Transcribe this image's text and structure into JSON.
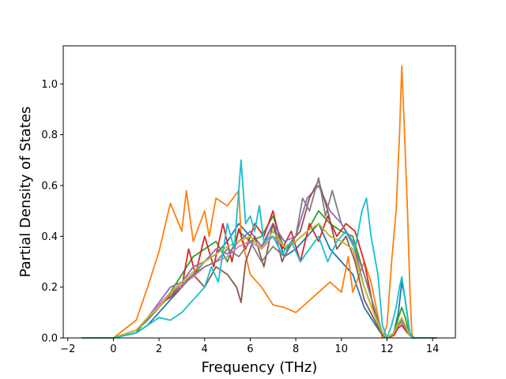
{
  "chart_data": {
    "type": "line",
    "title": "",
    "xlabel": "Frequency (THz)",
    "ylabel": "Partial Density of States",
    "xlim": [
      -2.2,
      15.0
    ],
    "ylim": [
      0.0,
      1.15
    ],
    "xticks": [
      -2,
      0,
      2,
      4,
      6,
      8,
      10,
      12,
      14
    ],
    "xtick_labels": [
      "−2",
      "0",
      "2",
      "4",
      "6",
      "8",
      "10",
      "12",
      "14"
    ],
    "yticks": [
      0.0,
      0.2,
      0.4,
      0.6,
      0.8,
      1.0
    ],
    "ytick_labels": [
      "0.0",
      "0.2",
      "0.4",
      "0.6",
      "0.8",
      "1.0"
    ],
    "grid": false,
    "legend": "none",
    "series": [
      {
        "color": "#1f77b4",
        "x": [
          -1.4,
          0,
          1,
          1.5,
          2,
          2.5,
          3,
          3.5,
          4,
          4.5,
          5,
          5.5,
          6,
          6.5,
          7,
          7.5,
          8,
          8.5,
          9,
          9.5,
          10,
          10.5,
          11,
          11.5,
          11.8,
          12.0,
          12.3,
          12.5,
          12.65,
          12.8,
          13.0,
          13.2,
          14.2
        ],
        "y": [
          0,
          0,
          0.02,
          0.05,
          0.1,
          0.15,
          0.2,
          0.25,
          0.3,
          0.33,
          0.38,
          0.45,
          0.4,
          0.35,
          0.45,
          0.32,
          0.35,
          0.4,
          0.45,
          0.35,
          0.3,
          0.25,
          0.12,
          0.05,
          0.01,
          0,
          0.02,
          0.1,
          0.22,
          0.15,
          0.02,
          0,
          0
        ]
      },
      {
        "color": "#ff7f0e",
        "x": [
          -1.4,
          0,
          1,
          1.5,
          2,
          2.5,
          3,
          3.2,
          3.5,
          4,
          4.2,
          4.5,
          5,
          5.5,
          5.6,
          6,
          6.5,
          7,
          7.5,
          8,
          8.5,
          9,
          9.5,
          10,
          10.3,
          10.5,
          11,
          11.3,
          11.8,
          12.0,
          12.2,
          12.4,
          12.55,
          12.65,
          12.75,
          12.9,
          13.0,
          13.1,
          14.2
        ],
        "y": [
          0,
          0,
          0.07,
          0.2,
          0.34,
          0.53,
          0.42,
          0.58,
          0.38,
          0.5,
          0.4,
          0.55,
          0.52,
          0.58,
          0.4,
          0.25,
          0.2,
          0.13,
          0.12,
          0.1,
          0.14,
          0.18,
          0.22,
          0.18,
          0.32,
          0.18,
          0.3,
          0.22,
          0,
          0.05,
          0.3,
          0.5,
          0.8,
          1.07,
          0.85,
          0.5,
          0.2,
          0,
          0
        ]
      },
      {
        "color": "#2ca02c",
        "x": [
          -1.4,
          0,
          1,
          1.5,
          2,
          2.5,
          3,
          3.5,
          4,
          4.5,
          5,
          5.5,
          6,
          6.5,
          7,
          7.5,
          8,
          8.5,
          9,
          9.5,
          10,
          10.5,
          11,
          11.5,
          11.8,
          12.0,
          12.3,
          12.5,
          12.65,
          12.8,
          13.0,
          13.2,
          14.2
        ],
        "y": [
          0,
          0,
          0.02,
          0.08,
          0.12,
          0.18,
          0.25,
          0.32,
          0.35,
          0.38,
          0.3,
          0.42,
          0.38,
          0.4,
          0.48,
          0.35,
          0.38,
          0.42,
          0.5,
          0.45,
          0.42,
          0.4,
          0.25,
          0.1,
          0.02,
          0,
          0.02,
          0.08,
          0.12,
          0.08,
          0.01,
          0,
          0
        ]
      },
      {
        "color": "#d62728",
        "x": [
          -1.4,
          0,
          1,
          1.5,
          2,
          2.5,
          3,
          3.3,
          3.6,
          4,
          4.4,
          4.8,
          5.2,
          5.5,
          5.8,
          6.2,
          6.6,
          7,
          7.4,
          7.8,
          8.2,
          8.6,
          9,
          9.4,
          9.8,
          10.2,
          10.6,
          11,
          11.4,
          11.8,
          12.0,
          12.3,
          12.5,
          12.65,
          12.8,
          13.0,
          13.2,
          14.2
        ],
        "y": [
          0,
          0,
          0.03,
          0.08,
          0.13,
          0.16,
          0.2,
          0.35,
          0.25,
          0.4,
          0.28,
          0.45,
          0.3,
          0.43,
          0.35,
          0.45,
          0.4,
          0.5,
          0.35,
          0.42,
          0.3,
          0.45,
          0.38,
          0.48,
          0.4,
          0.45,
          0.42,
          0.3,
          0.12,
          0.02,
          0,
          0.01,
          0.04,
          0.05,
          0.03,
          0.01,
          0,
          0
        ]
      },
      {
        "color": "#9467bd",
        "x": [
          -1.4,
          0,
          1,
          1.5,
          2,
          2.5,
          3,
          3.5,
          4,
          4.5,
          5,
          5.5,
          6,
          6.5,
          7,
          7.5,
          8,
          8.5,
          9,
          9.5,
          10,
          10.5,
          11,
          11.5,
          11.8,
          12.0,
          12.3,
          12.5,
          12.65,
          12.8,
          13.0,
          13.2,
          14.2
        ],
        "y": [
          0,
          0,
          0.03,
          0.08,
          0.14,
          0.2,
          0.22,
          0.28,
          0.3,
          0.35,
          0.33,
          0.38,
          0.42,
          0.36,
          0.45,
          0.38,
          0.4,
          0.55,
          0.6,
          0.5,
          0.45,
          0.38,
          0.2,
          0.08,
          0.02,
          0,
          0.02,
          0.05,
          0.06,
          0.04,
          0.01,
          0,
          0
        ]
      },
      {
        "color": "#8c564b",
        "x": [
          -1.4,
          0,
          1,
          1.5,
          2,
          2.5,
          3,
          3.5,
          4,
          4.5,
          5,
          5.4,
          5.6,
          5.8,
          6.2,
          6.6,
          7,
          7.4,
          7.8,
          8.2,
          8.6,
          9,
          9.4,
          9.8,
          10.2,
          10.6,
          11,
          11.4,
          11.8,
          12.0,
          12.3,
          12.5,
          12.65,
          12.8,
          13.0,
          13.2,
          14.2
        ],
        "y": [
          0,
          0,
          0.03,
          0.07,
          0.12,
          0.17,
          0.21,
          0.25,
          0.2,
          0.28,
          0.25,
          0.2,
          0.14,
          0.3,
          0.4,
          0.28,
          0.45,
          0.3,
          0.38,
          0.42,
          0.55,
          0.62,
          0.5,
          0.35,
          0.4,
          0.3,
          0.15,
          0.08,
          0.01,
          0,
          0.02,
          0.05,
          0.06,
          0.04,
          0.01,
          0,
          0
        ]
      },
      {
        "color": "#e377c2",
        "x": [
          -1.4,
          0,
          1,
          1.5,
          2,
          2.5,
          3,
          3.5,
          4,
          4.5,
          5,
          5.5,
          6,
          6.5,
          7,
          7.5,
          8,
          8.5,
          9,
          9.5,
          10,
          10.5,
          11,
          11.5,
          11.8,
          12.0,
          12.3,
          12.5,
          12.65,
          12.8,
          13.0,
          13.2,
          14.2
        ],
        "y": [
          0,
          0,
          0.03,
          0.08,
          0.13,
          0.18,
          0.21,
          0.24,
          0.28,
          0.3,
          0.32,
          0.36,
          0.38,
          0.35,
          0.4,
          0.36,
          0.38,
          0.42,
          0.45,
          0.4,
          0.38,
          0.35,
          0.2,
          0.08,
          0.02,
          0,
          0.02,
          0.05,
          0.06,
          0.04,
          0.01,
          0,
          0
        ]
      },
      {
        "color": "#7f7f7f",
        "x": [
          -1.4,
          0,
          1,
          1.5,
          2,
          2.5,
          3,
          3.5,
          4,
          4.5,
          5,
          5.5,
          6,
          6.5,
          7,
          7.5,
          8,
          8.3,
          8.6,
          9,
          9.3,
          9.6,
          10,
          10.3,
          10.6,
          11,
          11.5,
          11.8,
          12.0,
          12.3,
          12.5,
          12.65,
          12.8,
          13.0,
          13.2,
          14.2
        ],
        "y": [
          0,
          0,
          0.03,
          0.07,
          0.12,
          0.17,
          0.2,
          0.25,
          0.28,
          0.3,
          0.35,
          0.32,
          0.38,
          0.3,
          0.36,
          0.32,
          0.4,
          0.55,
          0.5,
          0.63,
          0.48,
          0.58,
          0.45,
          0.4,
          0.35,
          0.25,
          0.1,
          0.02,
          0,
          0.02,
          0.05,
          0.07,
          0.04,
          0.01,
          0,
          0
        ]
      },
      {
        "color": "#bcbd22",
        "x": [
          -1.4,
          0,
          1,
          1.5,
          2,
          2.5,
          3,
          3.5,
          4,
          4.5,
          5,
          5.5,
          6,
          6.5,
          7,
          7.5,
          8,
          8.5,
          9,
          9.5,
          10,
          10.5,
          11,
          11.5,
          11.8,
          12.0,
          12.3,
          12.5,
          12.65,
          12.8,
          13.0,
          13.2,
          14.2
        ],
        "y": [
          0,
          0,
          0.03,
          0.08,
          0.12,
          0.18,
          0.22,
          0.26,
          0.3,
          0.33,
          0.36,
          0.38,
          0.4,
          0.35,
          0.42,
          0.36,
          0.38,
          0.42,
          0.45,
          0.4,
          0.38,
          0.35,
          0.2,
          0.08,
          0.02,
          0,
          0.02,
          0.06,
          0.08,
          0.05,
          0.01,
          0,
          0
        ]
      },
      {
        "color": "#17becf",
        "x": [
          -1.4,
          0,
          1,
          1.5,
          2,
          2.5,
          3,
          3.5,
          4,
          4.3,
          4.6,
          5,
          5.3,
          5.5,
          5.6,
          5.8,
          6.0,
          6.2,
          6.4,
          6.6,
          7,
          7.4,
          7.8,
          8.2,
          8.6,
          9,
          9.4,
          9.8,
          10.2,
          10.6,
          10.9,
          11.1,
          11.3,
          11.6,
          11.8,
          12.0,
          12.2,
          12.4,
          12.55,
          12.65,
          12.75,
          12.9,
          13.0,
          13.1,
          14.2
        ],
        "y": [
          0,
          0,
          0.02,
          0.05,
          0.08,
          0.07,
          0.1,
          0.15,
          0.2,
          0.28,
          0.22,
          0.45,
          0.35,
          0.58,
          0.7,
          0.45,
          0.48,
          0.42,
          0.52,
          0.38,
          0.4,
          0.33,
          0.38,
          0.3,
          0.35,
          0.4,
          0.3,
          0.38,
          0.42,
          0.35,
          0.5,
          0.55,
          0.4,
          0.25,
          0.05,
          0,
          0.05,
          0.12,
          0.2,
          0.24,
          0.18,
          0.08,
          0.02,
          0,
          0
        ]
      }
    ]
  }
}
